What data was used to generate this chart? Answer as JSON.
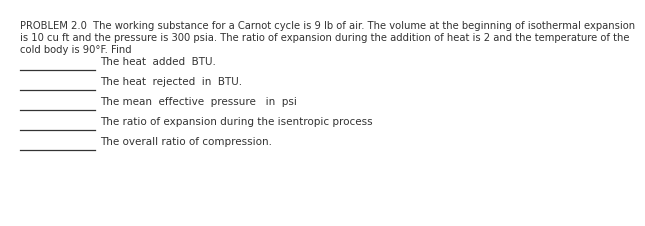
{
  "background_color": "#ffffff",
  "title_lines": [
    "PROBLEM 2.0  The working substance for a Carnot cycle is 9 lb of air. The volume at the beginning of isothermal expansion",
    "is 10 cu ft and the pressure is 300 psia. The ratio of expansion during the addition of heat is 2 and the temperature of the",
    "cold body is 90°F. Find"
  ],
  "items": [
    "The heat  added  BTU.",
    "The heat  rejected  in  BTU.",
    "The mean  effective  pressure   in  psi",
    "The ratio of expansion during the isentropic process",
    "The overall ratio of compression."
  ],
  "title_fontsize": 7.2,
  "item_fontsize": 7.5,
  "line_color": "#333333",
  "text_color": "#333333",
  "font_family": "DejaVu Sans"
}
